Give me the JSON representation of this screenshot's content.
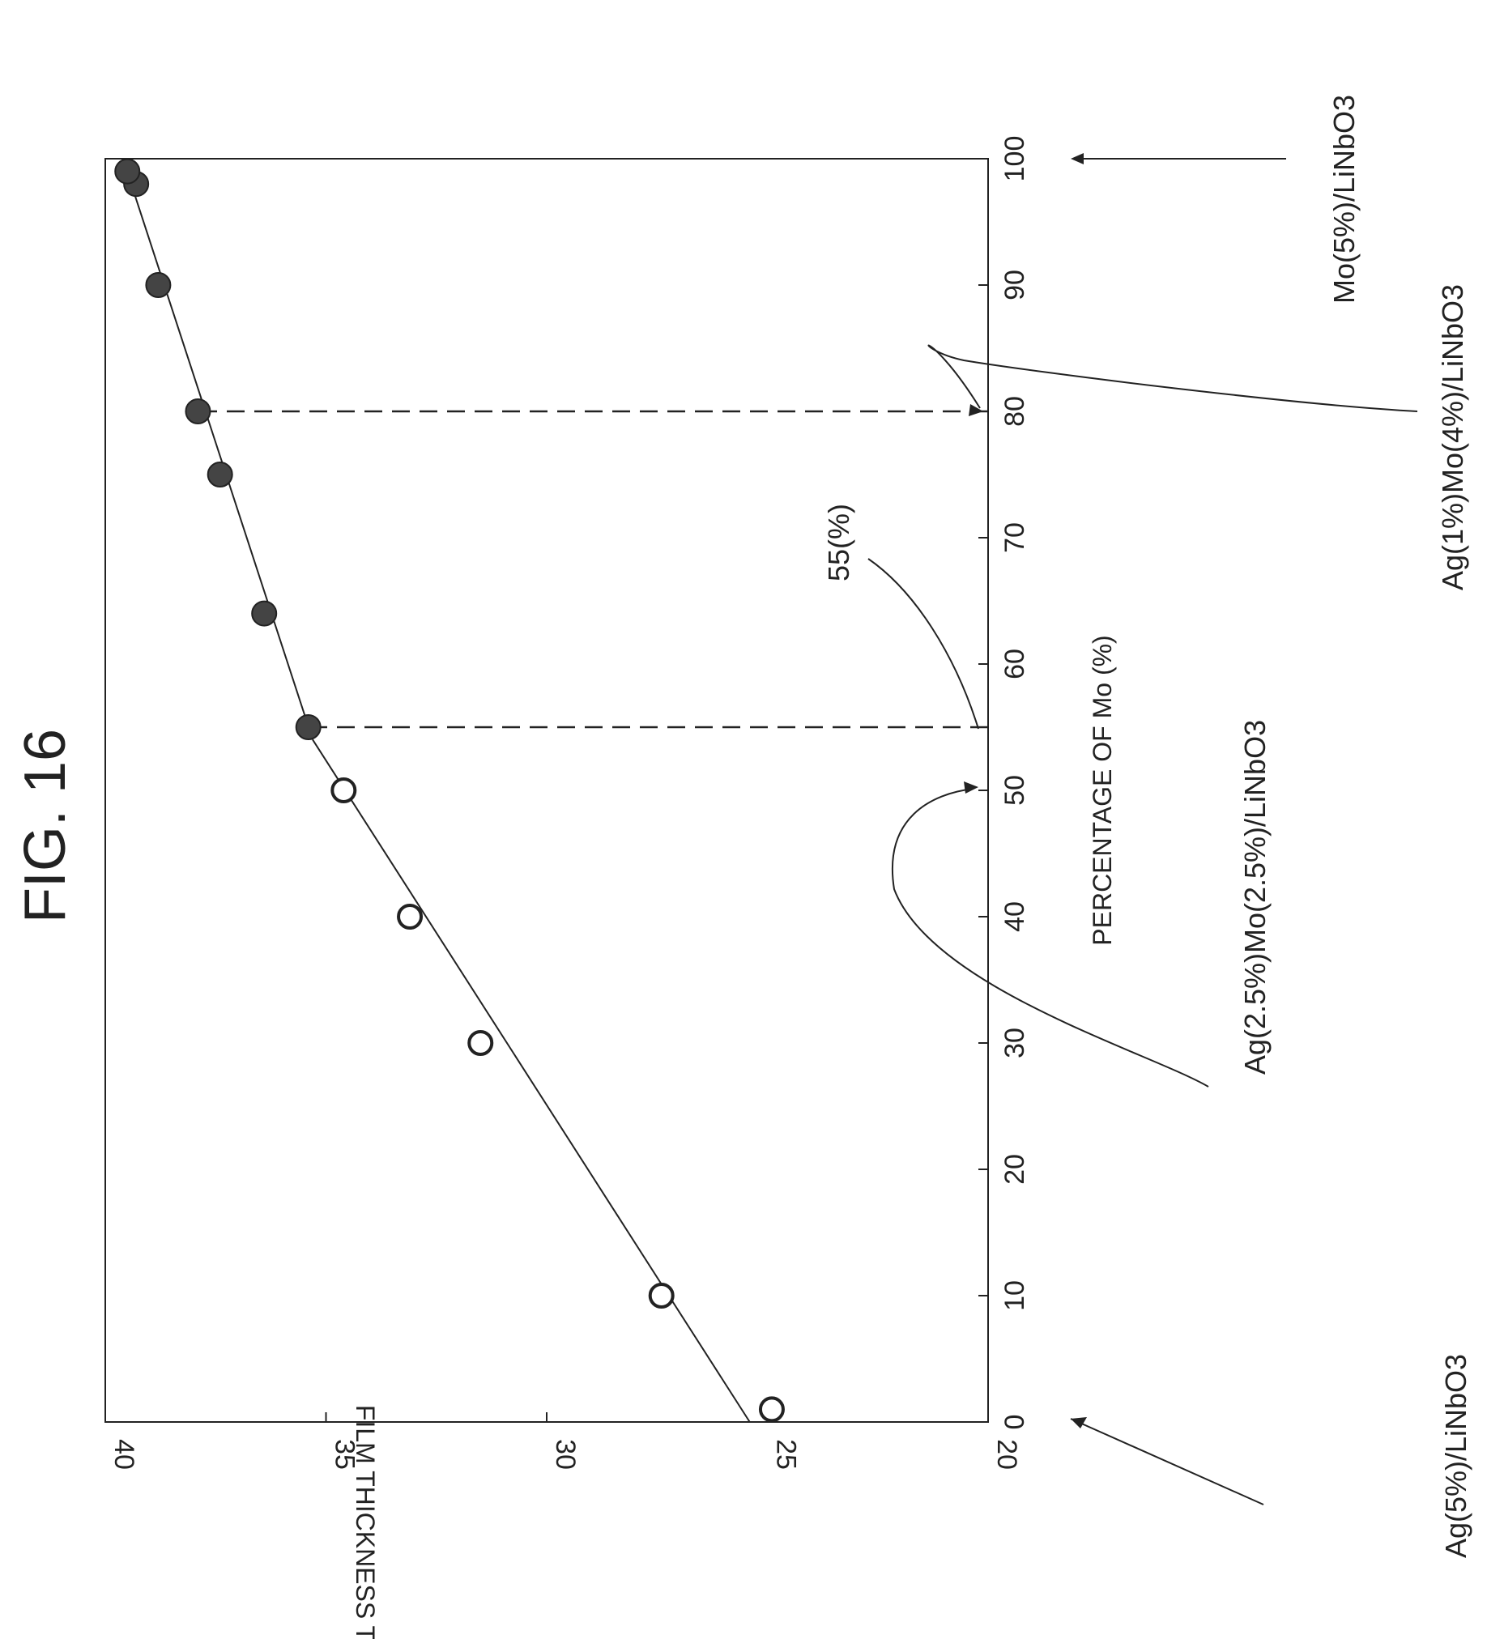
{
  "figure_label": "FIG. 16",
  "colors": {
    "ink": "#222222",
    "filled_marker": "#444444",
    "open_marker_fill": "#ffffff"
  },
  "chart_data": {
    "type": "scatter",
    "title": "FIG. 16",
    "xlabel": "PERCENTAGE OF Mo (%)",
    "ylabel": "FILM THICKNESS T (%)",
    "xlim": [
      0,
      100
    ],
    "ylim": [
      20,
      40
    ],
    "xticks": [
      "0",
      "10",
      "20",
      "30",
      "40",
      "50",
      "60",
      "70",
      "80",
      "90",
      "100"
    ],
    "yticks": [
      "20",
      "25",
      "30",
      "35",
      "40"
    ],
    "grid": false,
    "orientation": "rotated 90 degrees counter-clockwise on the page",
    "series": [
      {
        "marker": "open-circle",
        "x": [
          1,
          10,
          30,
          40,
          50
        ],
        "y": [
          24.9,
          27.4,
          31.5,
          33.1,
          34.6
        ]
      },
      {
        "marker": "filled-circle",
        "x": [
          55,
          64,
          75,
          80,
          90,
          98,
          99
        ],
        "y": [
          35.4,
          36.4,
          37.4,
          37.9,
          38.8,
          39.3,
          39.5
        ]
      }
    ],
    "trend_lines": [
      {
        "from": [
          0,
          25.4
        ],
        "to": [
          54,
          35.3
        ]
      },
      {
        "from": [
          54,
          35.3
        ],
        "to": [
          100,
          39.6
        ]
      }
    ],
    "reference_lines": [
      {
        "x": 55,
        "style": "dashed"
      },
      {
        "x": 80,
        "style": "dashed"
      }
    ],
    "annotations": [
      {
        "text": "55(%)",
        "points_to_x": 55
      },
      {
        "text": "Ag(5%)/LiNbO3",
        "points_to_x": 0
      },
      {
        "text": "Ag(2.5%)Mo(2.5%)/LiNbO3",
        "points_to_x": 50
      },
      {
        "text": "Ag(1%)Mo(4%)/LiNbO3",
        "points_to_x": 80
      },
      {
        "text": "Mo(5%)/LiNbO3",
        "points_to_x": 100
      }
    ]
  }
}
